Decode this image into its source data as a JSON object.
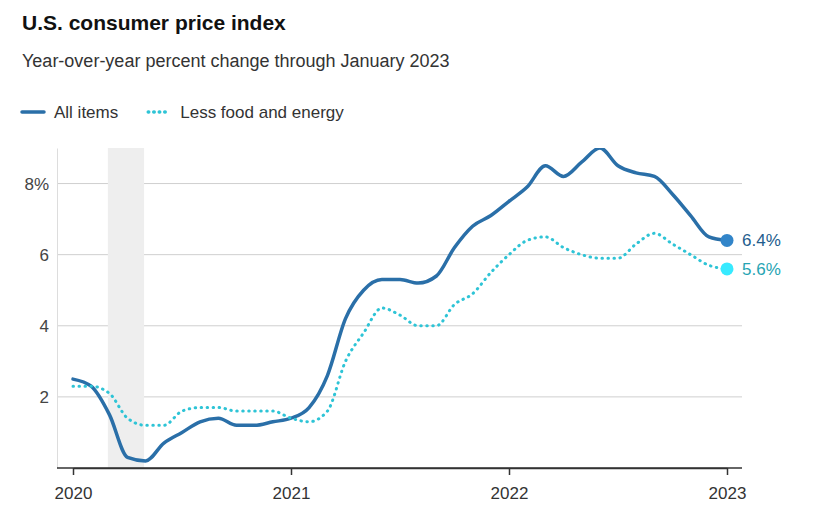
{
  "chart_data": {
    "type": "line",
    "title": "U.S. consumer price index",
    "subtitle": "Year-over-year percent change through January 2023",
    "x": [
      2020,
      2020.083,
      2020.167,
      2020.25,
      2020.333,
      2020.417,
      2020.5,
      2020.583,
      2020.667,
      2020.75,
      2020.833,
      2020.917,
      2021,
      2021.083,
      2021.167,
      2021.25,
      2021.333,
      2021.417,
      2021.5,
      2021.583,
      2021.667,
      2021.75,
      2021.833,
      2021.917,
      2022,
      2022.083,
      2022.167,
      2022.25,
      2022.333,
      2022.417,
      2022.5,
      2022.583,
      2022.667,
      2022.75,
      2022.833,
      2022.917,
      2023
    ],
    "xlim": [
      2020,
      2023
    ],
    "xticks": [
      2020,
      2021,
      2022,
      2023
    ],
    "ylim": [
      0,
      9
    ],
    "yticks": [
      2,
      4,
      6,
      {
        "value": 8,
        "label": "8%"
      }
    ],
    "grid": true,
    "legend": "top-left",
    "shaded_x": [
      2020.16,
      2020.326
    ],
    "series": [
      {
        "name": "All items",
        "color": "#2a6fa8",
        "line_style": "solid",
        "values": [
          2.5,
          2.3,
          1.5,
          0.3,
          0.2,
          0.7,
          1.0,
          1.3,
          1.4,
          1.2,
          1.2,
          1.3,
          1.4,
          1.7,
          2.6,
          4.2,
          5.0,
          5.3,
          5.3,
          5.2,
          5.4,
          6.2,
          6.8,
          7.1,
          7.5,
          7.9,
          8.5,
          8.2,
          8.6,
          9.0,
          8.5,
          8.3,
          8.2,
          7.7,
          7.1,
          6.5,
          6.4
        ],
        "value_labels": [
          null,
          null,
          null,
          null,
          null,
          null,
          null,
          null,
          null,
          null,
          null,
          null,
          null,
          null,
          null,
          null,
          null,
          null,
          null,
          null,
          null,
          null,
          null,
          null,
          null,
          null,
          null,
          null,
          null,
          null,
          null,
          null,
          null,
          null,
          null,
          null,
          "6.4%"
        ]
      },
      {
        "name": "Less food and energy",
        "color": "#2ec4d6",
        "line_style": "dotted",
        "values": [
          2.3,
          2.3,
          2.1,
          1.4,
          1.2,
          1.2,
          1.6,
          1.7,
          1.7,
          1.6,
          1.6,
          1.6,
          1.4,
          1.3,
          1.6,
          3.0,
          3.8,
          4.5,
          4.3,
          4.0,
          4.0,
          4.6,
          4.9,
          5.5,
          6.0,
          6.4,
          6.5,
          6.2,
          6.0,
          5.9,
          5.9,
          6.3,
          6.6,
          6.3,
          6.0,
          5.7,
          5.6
        ],
        "value_labels": [
          null,
          null,
          null,
          null,
          null,
          null,
          null,
          null,
          null,
          null,
          null,
          null,
          null,
          null,
          null,
          null,
          null,
          null,
          null,
          null,
          null,
          null,
          null,
          null,
          null,
          null,
          null,
          null,
          null,
          null,
          null,
          null,
          null,
          null,
          null,
          null,
          "5.6%"
        ]
      }
    ]
  }
}
